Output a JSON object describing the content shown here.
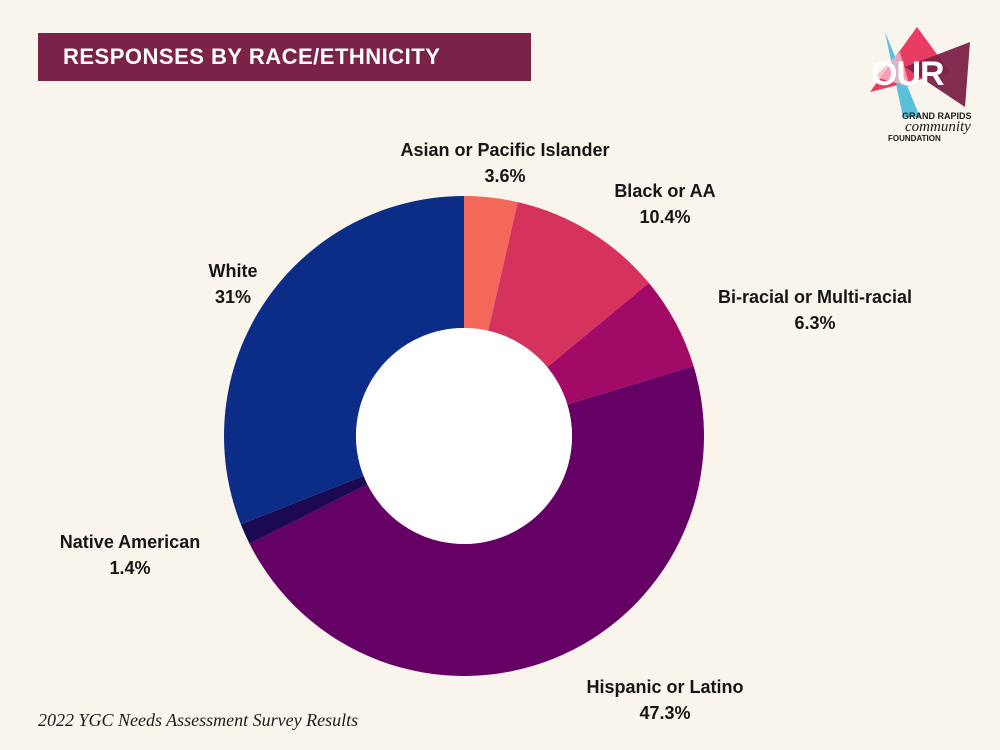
{
  "header": {
    "title": "RESPONSES BY RACE/ETHNICITY"
  },
  "logo": {
    "word": "OUR",
    "line1": "GRAND RAPIDS",
    "line2": "community",
    "line3": "FOUNDATION",
    "colors": [
      "#e8315c",
      "#4ab9d9",
      "#7b2248",
      "#f7b7c8"
    ]
  },
  "footer": {
    "text": "2022 YGC Needs Assessment Survey Results"
  },
  "chart_data": {
    "type": "pie",
    "donut": true,
    "title": "RESPONSES BY RACE/ETHNICITY",
    "slices": [
      {
        "label": "Asian or Pacific Islander",
        "value": 3.6,
        "value_label": "3.6%",
        "color": "#f4685a"
      },
      {
        "label": "Black or AA",
        "value": 10.4,
        "value_label": "10.4%",
        "color": "#d6325e"
      },
      {
        "label": "Bi-racial or Multi-racial",
        "value": 6.3,
        "value_label": "6.3%",
        "color": "#a20a68"
      },
      {
        "label": "Hispanic or Latino",
        "value": 47.3,
        "value_label": "47.3%",
        "color": "#650064"
      },
      {
        "label": "Native American",
        "value": 1.4,
        "value_label": "1.4%",
        "color": "#1b0a52"
      },
      {
        "label": "White",
        "value": 31,
        "value_label": "31%",
        "color": "#0c2d87"
      }
    ]
  }
}
